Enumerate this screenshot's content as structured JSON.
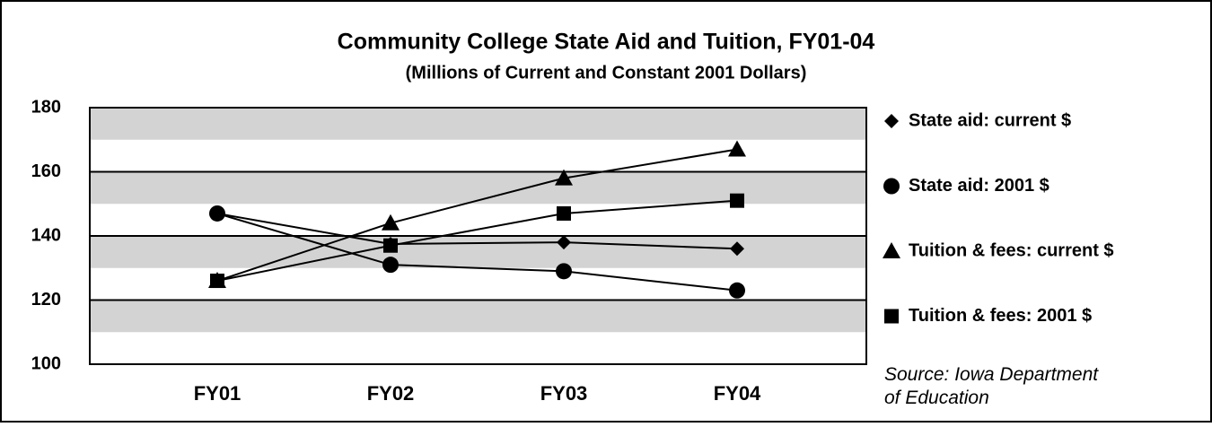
{
  "chart_data": {
    "type": "line",
    "title": "Community College State Aid and Tuition, FY01-04",
    "subtitle": "(Millions of Current and Constant 2001 Dollars)",
    "categories": [
      "FY01",
      "FY02",
      "FY03",
      "FY04"
    ],
    "series": [
      {
        "name": "State aid: current $",
        "color": "#000000",
        "marker": "diamond",
        "values": [
          147,
          137.5,
          138,
          136
        ]
      },
      {
        "name": "State aid: 2001 $",
        "color": "#000000",
        "marker": "circle",
        "values": [
          147,
          131,
          129,
          123
        ]
      },
      {
        "name": "Tuition & fees: current $",
        "color": "#000000",
        "marker": "triangle",
        "values": [
          126,
          144,
          158,
          167
        ]
      },
      {
        "name": "Tuition & fees: 2001 $",
        "color": "#000000",
        "marker": "square",
        "values": [
          126,
          137,
          147,
          151
        ]
      }
    ],
    "ylim": [
      100,
      180
    ],
    "yticks": [
      100,
      120,
      140,
      160,
      180
    ],
    "grid": true,
    "legend": "right",
    "annotation": "Source: Iowa Department of Education"
  }
}
